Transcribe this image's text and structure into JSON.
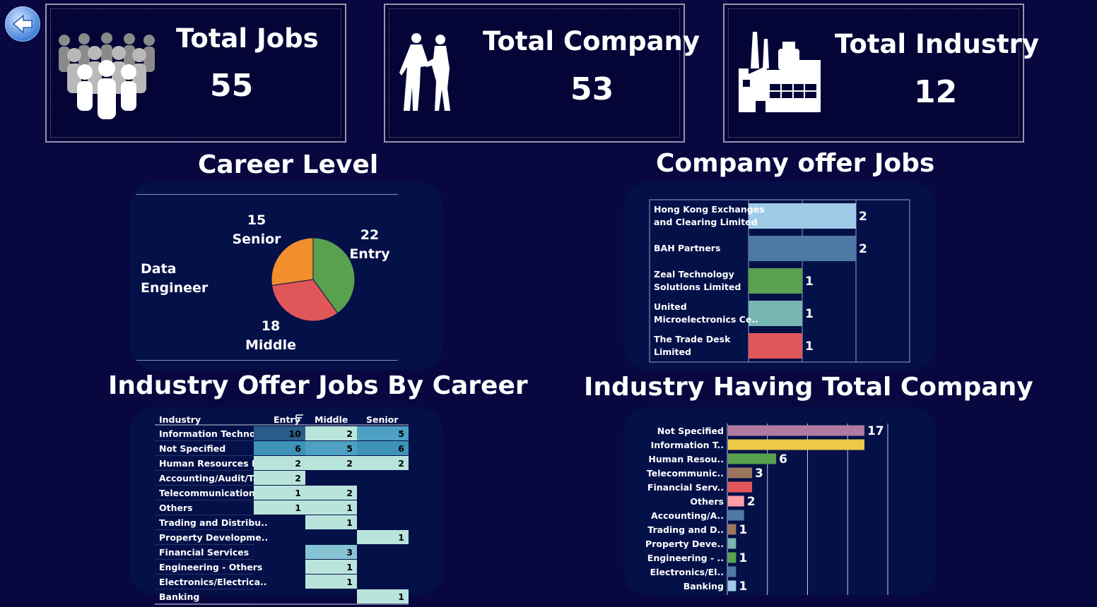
{
  "colors": {
    "background": "#080740",
    "panel": "#041048",
    "kpi_border": "#9a94a8"
  },
  "back_button": {
    "icon": "arrow-left-icon"
  },
  "kpis": [
    {
      "title": "Total Jobs",
      "value": "55",
      "icon": "people-group-icon"
    },
    {
      "title": "Total Company",
      "value": "53",
      "icon": "handshake-icon"
    },
    {
      "title": "Total Industry",
      "value": "12",
      "icon": "factory-icon"
    }
  ],
  "career_level": {
    "title": "Career Level",
    "center_label": "Data\nEngineer",
    "chart_data": {
      "type": "pie",
      "title": "Career Level",
      "slices": [
        {
          "label": "Entry",
          "value": 22,
          "color": "#59a14f"
        },
        {
          "label": "Middle",
          "value": 18,
          "color": "#e15759"
        },
        {
          "label": "Senior",
          "value": 15,
          "color": "#f28e2b"
        }
      ]
    }
  },
  "company_jobs": {
    "title": "Company offer Jobs",
    "chart_data": {
      "type": "bar",
      "orientation": "horizontal",
      "title": "Company offer Jobs",
      "categories": [
        "Hong Kong Exchanges and Clearing Limited",
        "BAH Partners",
        "Zeal Technology Solutions Limited",
        "United Microelectronics Ce..",
        "The Trade Desk Limited"
      ],
      "label_lines": [
        [
          "Hong Kong Exchanges",
          "and Clearing Limited"
        ],
        [
          "BAH Partners"
        ],
        [
          "Zeal Technology",
          "Solutions Limited"
        ],
        [
          "United",
          "Microelectronics Ce.."
        ],
        [
          "The Trade Desk",
          "Limited"
        ]
      ],
      "values": [
        2,
        2,
        1,
        1,
        1
      ],
      "colors": [
        "#a0cbe8",
        "#4e79a7",
        "#59a14f",
        "#76b7b2",
        "#e15759"
      ],
      "xlim": [
        0,
        3
      ]
    }
  },
  "industry_career": {
    "title": "Industry Offer Jobs By Career",
    "chart_data": {
      "type": "table",
      "columns": [
        "Industry",
        "Entry",
        "Middle",
        "Senior"
      ],
      "rows": [
        {
          "industry": "Information Technol..",
          "values": [
            10,
            2,
            5
          ]
        },
        {
          "industry": "Not Specified",
          "values": [
            6,
            5,
            6
          ]
        },
        {
          "industry": "Human Resources M..",
          "values": [
            2,
            2,
            2
          ]
        },
        {
          "industry": "Accounting/Audit/Ta..",
          "values": [
            2,
            null,
            null
          ]
        },
        {
          "industry": "Telecommunication",
          "values": [
            1,
            2,
            null
          ]
        },
        {
          "industry": "Others",
          "values": [
            1,
            1,
            null
          ]
        },
        {
          "industry": "Trading and Distribu..",
          "values": [
            null,
            1,
            null
          ]
        },
        {
          "industry": "Property Developme..",
          "values": [
            null,
            null,
            1
          ]
        },
        {
          "industry": "Financial Services",
          "values": [
            null,
            3,
            null
          ]
        },
        {
          "industry": "Engineering - Others",
          "values": [
            null,
            1,
            null
          ]
        },
        {
          "industry": "Electronics/Electrica..",
          "values": [
            null,
            1,
            null
          ]
        },
        {
          "industry": "Banking",
          "values": [
            null,
            null,
            1
          ]
        }
      ]
    }
  },
  "industry_company": {
    "title": "Industry Having Total Company",
    "chart_data": {
      "type": "bar",
      "orientation": "horizontal",
      "title": "Industry Having Total Company",
      "categories": [
        "Not Specified",
        "Information T..",
        "Human Resou..",
        "Telecommunic..",
        "Financial Serv..",
        "Others",
        "Accounting/A..",
        "Trading and D..",
        "Property Deve..",
        "Engineering - ..",
        "Electronics/El..",
        "Banking"
      ],
      "values": [
        17,
        17,
        6,
        3,
        3,
        2,
        2,
        1,
        1,
        1,
        1,
        1
      ],
      "value_labels": [
        "17",
        "",
        "6",
        "3",
        "",
        "2",
        "",
        "1",
        "",
        "1",
        "",
        "1"
      ],
      "colors": [
        "#b07aa1",
        "#edc948",
        "#59a14f",
        "#9c755f",
        "#e15759",
        "#ff9da7",
        "#4e79a7",
        "#9c755f",
        "#76b7b2",
        "#59a14f",
        "#4e79a7",
        "#a0cbe8"
      ],
      "xlim": [
        0,
        20
      ]
    }
  }
}
